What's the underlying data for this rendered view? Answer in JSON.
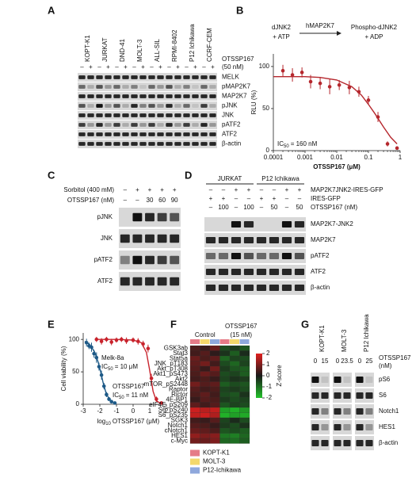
{
  "panel_labels": [
    "A",
    "B",
    "C",
    "D",
    "E",
    "F",
    "G"
  ],
  "panel_a": {
    "cell_lines": [
      "KOPT-K1",
      "JURKAT",
      "DND-41",
      "MOLT-3",
      "ALL-SIL",
      "RPMI-8402",
      "P12 Ichikawa",
      "CCRF-CEM"
    ],
    "treatment_label": [
      "OTSSP167",
      "(50 nM)"
    ],
    "signs": [
      "–",
      "+",
      "–",
      "+",
      "–",
      "+",
      "–",
      "+",
      "–",
      "+",
      "–",
      "+",
      "–",
      "+",
      "–",
      "+"
    ],
    "blots": [
      "MELK",
      "pMAP2K7",
      "MAP2K7",
      "pJNK",
      "JNK",
      "pATF2",
      "ATF2",
      "β-actin"
    ]
  },
  "panel_b": {
    "reaction": {
      "substrate": [
        "dJNK2",
        "+ ATP"
      ],
      "enzyme": "hMAP2K7",
      "product": [
        "Phospho-dJNK2",
        "+ ADP"
      ]
    }
  },
  "panel_c": {
    "rows": [
      {
        "label": "Sorbitol (400 mM)",
        "values": [
          "–",
          "+",
          "+",
          "+",
          "+"
        ]
      },
      {
        "label": "OTSSP167 (nM)",
        "values": [
          "–",
          "–",
          30,
          60,
          90
        ]
      }
    ],
    "blots": [
      "pJNK",
      "JNK",
      "pATF2",
      "ATF2"
    ]
  },
  "panel_d": {
    "groups": [
      "JURKAT",
      "P12 Ichikawa"
    ],
    "rows": [
      {
        "label": "MAP2K7JNK2-IRES-GFP",
        "values": [
          "–",
          "–",
          "+",
          "+",
          "–",
          "–",
          "+",
          "+"
        ]
      },
      {
        "label": "IRES-GFP",
        "values": [
          "+",
          "+",
          "–",
          "–",
          "+",
          "+",
          "–",
          "–"
        ]
      },
      {
        "label": "OTSSP167 (nM)",
        "values": [
          "–",
          100,
          "–",
          100,
          "–",
          50,
          "–",
          50
        ]
      }
    ],
    "blots": [
      "MAP2K7-JNK2",
      "MAP2K7",
      "pATF2",
      "ATF2",
      "β-actin"
    ]
  },
  "panel_g": {
    "cell_lines": [
      "KOPT-K1",
      "MOLT-3",
      "P12 Ichikawa"
    ],
    "doses": [
      0,
      15,
      0,
      23.5,
      0,
      25
    ],
    "dose_label": [
      "OTSSP167",
      "(nM)"
    ],
    "blots": [
      "pS6",
      "S6",
      "Notch1",
      "HES1",
      "β-actin"
    ]
  },
  "chart_data": [
    {
      "type": "scatter",
      "xscale": "log",
      "ylabel": "RLU (%)",
      "xlabel": "OTSSP167 (μM)",
      "xlim": [
        0.0001,
        1
      ],
      "ylim": [
        0,
        115
      ],
      "xticks": [
        0.0001,
        0.001,
        0.01,
        0.1,
        1
      ],
      "yticks": [
        0,
        50,
        100
      ],
      "annotation": [
        "IC",
        "50",
        "= 160 nM"
      ],
      "series": [
        {
          "color": "#b5272d",
          "x": [
            0.0002,
            0.0004,
            0.0008,
            0.0015,
            0.003,
            0.006,
            0.012,
            0.025,
            0.05,
            0.1,
            0.2,
            0.4,
            0.8
          ],
          "values": [
            95,
            90,
            93,
            82,
            80,
            76,
            78,
            75,
            70,
            60,
            40,
            8,
            3
          ],
          "errors": [
            7,
            8,
            6,
            8,
            7,
            9,
            6,
            8,
            6,
            5,
            6,
            3,
            2
          ],
          "fit_x": [
            0.0001,
            0.0003,
            0.001,
            0.003,
            0.01,
            0.03,
            0.06,
            0.1,
            0.16,
            0.3,
            0.5,
            0.8
          ],
          "fit_values": [
            88,
            88,
            88,
            87,
            84,
            76,
            66,
            55,
            44,
            28,
            16,
            8
          ]
        }
      ]
    },
    {
      "type": "scatter",
      "xscale": "linear",
      "ylabel": "Cell viability (%)",
      "xlabel": [
        "log",
        "10",
        "OTSSP167 (μM)"
      ],
      "xlim": [
        -3,
        2
      ],
      "ylim": [
        0,
        110
      ],
      "xticks": [
        -3,
        -2,
        -1,
        0,
        1,
        2
      ],
      "yticks": [
        0,
        50,
        100
      ],
      "series": [
        {
          "name": "Melk-8a",
          "color": "#c8232c",
          "annotation": [
            "IC",
            "50",
            "= 10 μM"
          ],
          "x": [
            -2.2,
            -1.9,
            -1.6,
            -1.3,
            -1,
            -0.7,
            -0.4,
            0,
            0.3,
            0.6,
            0.9,
            1.1,
            1.4,
            1.7
          ],
          "values": [
            100,
            97,
            100,
            96,
            99,
            100,
            98,
            99,
            97,
            93,
            86,
            40,
            8,
            2
          ],
          "errors": [
            4,
            5,
            4,
            5,
            4,
            4,
            5,
            4,
            5,
            5,
            6,
            7,
            4,
            2
          ],
          "fit_x": [
            -2.3,
            -1,
            0,
            0.5,
            0.8,
            1,
            1.2,
            1.4,
            1.7
          ],
          "fit_values": [
            100,
            100,
            99,
            95,
            80,
            52,
            20,
            5,
            1
          ]
        },
        {
          "name": "OTSSP167",
          "color": "#1e5a87",
          "annotation": [
            "IC",
            "50",
            "= 11 nM"
          ],
          "x": [
            -2.8,
            -2.65,
            -2.5,
            -2.35,
            -2.2,
            -2.05,
            -1.9,
            -1.75,
            -1.6,
            -1.45,
            -1.3,
            -1.1
          ],
          "values": [
            95,
            90,
            88,
            78,
            72,
            58,
            45,
            28,
            15,
            8,
            4,
            2
          ],
          "errors": [
            6,
            5,
            7,
            6,
            8,
            6,
            7,
            5,
            4,
            3,
            2,
            2
          ],
          "fit_x": [
            -2.9,
            -2.6,
            -2.3,
            -2.1,
            -1.95,
            -1.8,
            -1.6,
            -1.3,
            -1
          ],
          "fit_values": [
            97,
            92,
            80,
            65,
            50,
            33,
            15,
            4,
            1
          ]
        }
      ]
    },
    {
      "type": "heatmap",
      "title": [
        "OTSSP167",
        "(15 nM)"
      ],
      "group_label": "Control",
      "rows": [
        "GSK3ab",
        "Stat3",
        "Stat5a",
        "JNK_pT183",
        "Akt_pT308",
        "Akt1_pS473",
        "Akt2",
        "mTOR_pS2448",
        "Raptor",
        "Rictor",
        "4E-BP1",
        "eIF4E_pS209",
        "S6_pS240",
        "S6_pS235",
        "SGK3",
        "Notch1",
        "cNotch1",
        "HES1",
        "c-Myc"
      ],
      "values": [
        [
          0.5,
          0.3,
          0.8,
          -0.6,
          -0.4,
          -0.7
        ],
        [
          0.4,
          0.6,
          0.2,
          -0.3,
          -0.8,
          -0.2
        ],
        [
          0.8,
          0.5,
          0.7,
          -0.9,
          -0.5,
          -0.6
        ],
        [
          0.7,
          0.9,
          0.4,
          -0.6,
          -0.9,
          -0.5
        ],
        [
          0.6,
          0.3,
          0.9,
          -0.4,
          -0.7,
          -0.8
        ],
        [
          0.5,
          0.8,
          0.6,
          -0.6,
          -0.5,
          -0.8
        ],
        [
          0.4,
          0.5,
          0.3,
          -0.5,
          -0.3,
          -0.4
        ],
        [
          0.9,
          0.6,
          0.7,
          -0.8,
          -0.6,
          -0.7
        ],
        [
          0.6,
          0.4,
          0.5,
          -0.5,
          -0.4,
          -0.6
        ],
        [
          0.5,
          0.7,
          0.4,
          -0.6,
          -0.7,
          -0.3
        ],
        [
          0.3,
          0.6,
          0.5,
          -0.4,
          -0.6,
          -0.5
        ],
        [
          0.7,
          0.4,
          0.6,
          -0.7,
          -0.5,
          -0.6
        ],
        [
          1.8,
          1.6,
          1.7,
          -1.6,
          -1.8,
          -1.5
        ],
        [
          1.7,
          1.8,
          1.5,
          -1.8,
          -1.6,
          -1.7
        ],
        [
          0.4,
          0.3,
          0.6,
          -0.5,
          -0.2,
          -0.6
        ],
        [
          0.6,
          0.5,
          0.3,
          -0.4,
          -0.6,
          -0.3
        ],
        [
          0.8,
          0.7,
          0.5,
          -0.7,
          -0.6,
          -0.8
        ],
        [
          1.2,
          1.0,
          1.1,
          -1.1,
          -1.2,
          -0.9
        ],
        [
          0.9,
          0.8,
          1.0,
          -0.9,
          -1.0,
          -0.8
        ]
      ],
      "column_colors": [
        "#e57b87",
        "#f3d86b",
        "#8fa8dc",
        "#e57b87",
        "#f3d86b",
        "#8fa8dc"
      ],
      "zlim": [
        -2,
        2
      ],
      "colorbar_label": "Z-score",
      "colorbar_ticks": [
        2,
        1,
        0,
        -1,
        -2
      ],
      "legend": [
        {
          "name": "KOPT-K1",
          "color": "#e57b87"
        },
        {
          "name": "MOLT-3",
          "color": "#f3d86b"
        },
        {
          "name": "P12-Ichikawa",
          "color": "#8fa8dc"
        }
      ]
    }
  ]
}
